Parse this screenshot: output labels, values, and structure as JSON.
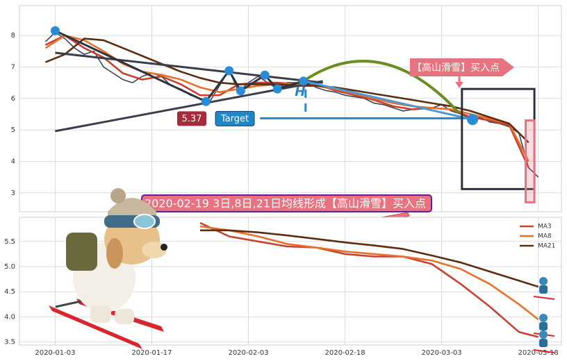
{
  "chart_data": [
    {
      "type": "line",
      "xlim": [
        -3.7,
        52.4
      ],
      "ylim": [
        2.4,
        8.95
      ],
      "yticks": [
        3,
        4,
        5,
        6,
        7,
        8
      ],
      "grid": true,
      "series": [
        {
          "color": "#3d4458",
          "x": [
            -1,
            0,
            1,
            2,
            3,
            4,
            5,
            6,
            7,
            8,
            9,
            10,
            11,
            12,
            13,
            14,
            15,
            16,
            17,
            18,
            19,
            20,
            21,
            22,
            23,
            24,
            25,
            26,
            27,
            28,
            29,
            30,
            31,
            32,
            33,
            34,
            35,
            36,
            37,
            38,
            39,
            40,
            41,
            42,
            43,
            44,
            45,
            46,
            47,
            48,
            49,
            50
          ],
          "values": [
            7.8,
            8.1,
            7.9,
            7.6,
            7.4,
            7.5,
            7.0,
            6.8,
            6.6,
            6.5,
            6.7,
            6.8,
            6.7,
            6.4,
            6.3,
            6.1,
            6.0,
            5.9,
            6.4,
            6.9,
            6.2,
            6.5,
            6.7,
            6.5,
            6.3,
            6.5,
            6.5,
            6.55,
            6.35,
            6.25,
            6.2,
            6.1,
            6.05,
            6.0,
            5.85,
            5.8,
            5.7,
            5.6,
            5.65,
            5.7,
            5.7,
            5.8,
            5.6,
            5.5,
            5.35,
            5.4,
            5.25,
            5.2,
            5.1,
            4.9,
            3.8,
            3.5
          ]
        },
        {
          "color": "#c8412f",
          "x": [
            -1,
            1,
            3,
            5,
            7,
            9,
            11,
            13,
            15,
            17,
            19,
            21,
            23,
            25,
            27,
            29,
            31,
            33,
            35,
            37,
            39,
            41,
            43,
            45,
            47,
            49
          ],
          "values": [
            7.7,
            8.0,
            7.6,
            7.3,
            6.8,
            6.6,
            6.7,
            6.45,
            6.1,
            6.1,
            6.45,
            6.5,
            6.5,
            6.45,
            6.45,
            6.25,
            6.1,
            5.95,
            5.75,
            5.65,
            5.7,
            5.65,
            5.4,
            5.3,
            5.15,
            3.8
          ]
        },
        {
          "color": "#e8702a",
          "x": [
            -1,
            1,
            3,
            5,
            7,
            9,
            11,
            13,
            15,
            17,
            19,
            21,
            23,
            25,
            27,
            29,
            31,
            33,
            35,
            37,
            39,
            41,
            43,
            45,
            47,
            49
          ],
          "values": [
            7.6,
            8.0,
            7.85,
            7.5,
            7.1,
            6.85,
            6.75,
            6.6,
            6.35,
            6.2,
            6.3,
            6.4,
            6.45,
            6.45,
            6.4,
            6.3,
            6.15,
            6.0,
            5.85,
            5.75,
            5.7,
            5.65,
            5.5,
            5.35,
            5.2,
            4.0
          ]
        },
        {
          "color": "#5b2c0f",
          "x": [
            -1,
            1,
            3,
            5,
            7,
            9,
            11,
            13,
            15,
            17,
            19,
            21,
            23,
            25,
            27,
            29,
            31,
            33,
            35,
            37,
            39,
            41,
            43,
            45,
            47,
            49
          ],
          "values": [
            7.15,
            7.4,
            7.9,
            7.85,
            7.6,
            7.35,
            7.1,
            6.85,
            6.65,
            6.5,
            6.45,
            6.45,
            6.45,
            6.4,
            6.4,
            6.35,
            6.25,
            6.15,
            6.05,
            5.95,
            5.85,
            5.75,
            5.6,
            5.4,
            5.2,
            4.6
          ]
        }
      ],
      "trendlines": [
        {
          "x": [
            0,
            27.7
          ],
          "values": [
            7.45,
            6.5
          ]
        },
        {
          "x": [
            0,
            27.7
          ],
          "values": [
            4.96,
            6.55
          ]
        }
      ],
      "pivots": {
        "x": [
          0,
          15.6,
          18,
          19.2,
          21.7,
          23,
          25.7,
          43.2
        ],
        "values": [
          8.15,
          5.9,
          6.88,
          6.24,
          6.74,
          6.3,
          6.55,
          5.33
        ]
      },
      "head_label": "H",
      "target": {
        "value": 5.37,
        "label": "Target",
        "x": [
          21.2,
          43.2
        ]
      },
      "boxes": [
        {
          "x": [
            42.1,
            49.6
          ],
          "y": [
            3.12,
            6.3
          ],
          "color": "#2d3340"
        },
        {
          "x": [
            48.7,
            49.6
          ],
          "y": [
            2.7,
            5.3
          ],
          "color": "#e8727f"
        }
      ],
      "callout": "【高山滑雪】买入点",
      "banner": "2020-02-19 3日,8日,21日均线形成【高山滑雪】买入点"
    },
    {
      "type": "line",
      "xlim": [
        -3.7,
        52.4
      ],
      "ylim": [
        3.44,
        5.98
      ],
      "yticks": [
        3.5,
        {
          "value": 4.0,
          "label": "4.0"
        },
        4.5,
        {
          "value": 5.0,
          "label": "5.0"
        },
        5.5
      ],
      "xticks": [
        {
          "value": 0,
          "label": "2020-01-03"
        },
        {
          "value": 10,
          "label": "2020-01-17"
        },
        {
          "value": 20,
          "label": "2020-02-03"
        },
        {
          "value": 30,
          "label": "2020-02-18"
        },
        {
          "value": 40,
          "label": "2020-03-03"
        },
        {
          "value": 50,
          "label": "2020-03-18"
        }
      ],
      "grid": true,
      "legend": "upper right",
      "series": [
        {
          "name": "MA3",
          "color": "#c8412f",
          "x": [
            15,
            18,
            21,
            24,
            27,
            30,
            33,
            36,
            39,
            42,
            45,
            48,
            50
          ],
          "values": [
            5.87,
            5.6,
            5.5,
            5.4,
            5.38,
            5.25,
            5.2,
            5.2,
            5.05,
            4.65,
            4.2,
            3.7,
            3.6
          ]
        },
        {
          "name": "MA8",
          "color": "#e8702a",
          "x": [
            15,
            18,
            21,
            24,
            27,
            30,
            33,
            36,
            39,
            42,
            45,
            48,
            50
          ],
          "values": [
            5.8,
            5.72,
            5.6,
            5.45,
            5.38,
            5.3,
            5.25,
            5.2,
            5.12,
            4.95,
            4.65,
            4.25,
            3.95
          ]
        },
        {
          "name": "MA21",
          "color": "#5b2c0f",
          "x": [
            15,
            18,
            21,
            24,
            27,
            30,
            33,
            36,
            39,
            42,
            45,
            48,
            50
          ],
          "values": [
            5.72,
            5.72,
            5.68,
            5.62,
            5.55,
            5.48,
            5.42,
            5.35,
            5.22,
            5.08,
            4.9,
            4.72,
            4.6
          ]
        }
      ]
    }
  ]
}
